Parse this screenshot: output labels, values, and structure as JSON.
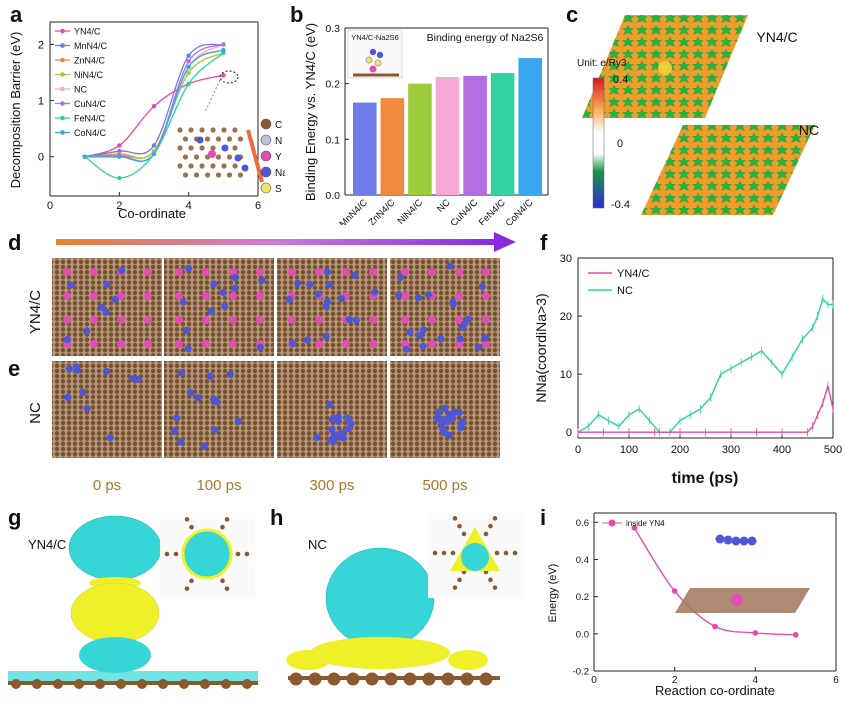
{
  "figure": {
    "panel_letters": [
      "a",
      "b",
      "c",
      "d",
      "e",
      "f",
      "g",
      "h",
      "i"
    ]
  },
  "panel_a": {
    "ylabel": "Decomposition Barrier (eV)",
    "xlabel": "Co-ordinate",
    "xticks": [
      "0",
      "2",
      "4",
      "6"
    ],
    "yticks": [
      "0",
      "1",
      "2"
    ],
    "legend": [
      "YN4/C",
      "MnN4/C",
      "ZnN4/C",
      "NiN4/C",
      "NC",
      "CuN4/C",
      "FeN4/C",
      "CoN4/C"
    ],
    "atoms": [
      "C",
      "N",
      "Y",
      "Na",
      "S"
    ],
    "atom_colors": [
      "#8a5a2e",
      "#b9c3d8",
      "#e24db5",
      "#4f57d6",
      "#f2e36b"
    ]
  },
  "panel_b": {
    "ylabel": "Binding Energy vs. YN4/C (eV)",
    "title": "Binding energy of Na2S6",
    "inset_label": "YN4/C-Na2S6",
    "yticks": [
      "0.0",
      "0.1",
      "0.2",
      "0.3"
    ]
  },
  "panel_c": {
    "label_top": "YN4/C",
    "label_bottom": "NC",
    "unit": "Unit: e/Ry3",
    "cbar_ticks": [
      "0.4",
      "0",
      "-0.4"
    ]
  },
  "panel_d": {
    "row_label": "YN4/C"
  },
  "panel_e": {
    "row_label": "NC",
    "times": [
      "0 ps",
      "100 ps",
      "300 ps",
      "500 ps"
    ]
  },
  "panel_f": {
    "ylabel": "NNa(coordiNa>3)",
    "xlabel": "time (ps)",
    "xticks": [
      "0",
      "100",
      "200",
      "300",
      "400",
      "500"
    ],
    "yticks": [
      "0",
      "10",
      "20",
      "30"
    ],
    "legend": [
      "YN4/C",
      "NC"
    ]
  },
  "panel_g": {
    "label": "YN4/C"
  },
  "panel_h": {
    "label": "NC"
  },
  "panel_i": {
    "ylabel": "Energy (eV)",
    "xlabel": "Reaction co-ordinate",
    "legend": "inside YN4",
    "xticks": [
      "0",
      "2",
      "4",
      "6"
    ],
    "yticks": [
      "-0.2",
      "0.0",
      "0.2",
      "0.4",
      "0.6"
    ]
  },
  "colors": {
    "YN4": "#e64aa5",
    "MnN4": "#6e7be8",
    "ZnN4": "#f08a3c",
    "NiN4": "#9ccc3c",
    "NC": "#f4a9d6",
    "CuN4": "#b36fe0",
    "FeN4": "#2fd3a0",
    "CoN4": "#3aa6ef",
    "iso_cyan": "#36d6d6",
    "iso_yellow": "#f0f02a"
  },
  "chart_data": [
    {
      "panel": "a",
      "type": "line",
      "title": "",
      "xlabel": "Co-ordinate",
      "ylabel": "Decomposition Barrier (eV)",
      "xlim": [
        0,
        6
      ],
      "ylim": [
        -0.7,
        2.4
      ],
      "x": [
        1,
        2,
        3,
        4,
        5
      ],
      "series": [
        {
          "name": "YN4/C",
          "values": [
            0,
            0.2,
            0.9,
            1.3,
            1.45
          ]
        },
        {
          "name": "MnN4/C",
          "values": [
            0,
            0.1,
            0.2,
            1.8,
            2.0
          ]
        },
        {
          "name": "ZnN4/C",
          "values": [
            0,
            0.05,
            0.1,
            1.6,
            1.9
          ]
        },
        {
          "name": "NiN4/C",
          "values": [
            0,
            0.02,
            0.1,
            1.5,
            1.85
          ]
        },
        {
          "name": "NC",
          "values": [
            0,
            0.0,
            0.05,
            1.6,
            2.0
          ]
        },
        {
          "name": "CuN4/C",
          "values": [
            0,
            0.02,
            0.05,
            1.7,
            2.0
          ]
        },
        {
          "name": "FeN4/C",
          "values": [
            0,
            -0.38,
            0.05,
            1.3,
            1.85
          ]
        },
        {
          "name": "CoN4/C",
          "values": [
            0,
            0.0,
            0.05,
            1.6,
            1.9
          ]
        }
      ]
    },
    {
      "panel": "b",
      "type": "bar",
      "title": "Binding energy of Na2S6",
      "xlabel": "",
      "ylabel": "Binding Energy vs. YN4/C (eV)",
      "ylim": [
        0,
        0.3
      ],
      "categories": [
        "MnN4/C",
        "ZnN4/C",
        "NiN4/C",
        "NC",
        "CuN4/C",
        "FeN4/C",
        "CoN4/C"
      ],
      "values": [
        0.166,
        0.174,
        0.2,
        0.212,
        0.214,
        0.219,
        0.246
      ]
    },
    {
      "panel": "f",
      "type": "line",
      "title": "",
      "xlabel": "time (ps)",
      "ylabel": "NNa(coordiNa>3)",
      "xlim": [
        0,
        500
      ],
      "ylim": [
        -1,
        30
      ],
      "series": [
        {
          "name": "YN4/C",
          "x": [
            0,
            50,
            100,
            150,
            200,
            250,
            300,
            350,
            400,
            450,
            460,
            470,
            480,
            490,
            500
          ],
          "values": [
            0,
            0,
            0,
            0,
            0,
            0,
            0,
            0,
            0,
            0,
            1,
            3,
            5,
            8,
            4
          ]
        },
        {
          "name": "NC",
          "x": [
            0,
            20,
            40,
            60,
            80,
            100,
            120,
            140,
            160,
            180,
            200,
            220,
            240,
            260,
            280,
            300,
            320,
            340,
            360,
            380,
            400,
            420,
            440,
            460,
            470,
            480,
            490,
            500
          ],
          "values": [
            0,
            1,
            3,
            2,
            1,
            3,
            4,
            2,
            0,
            0,
            2,
            3,
            4,
            6,
            10,
            11,
            12,
            13,
            14,
            12,
            10,
            13,
            16,
            18,
            20,
            23,
            22,
            22
          ]
        }
      ]
    },
    {
      "panel": "i",
      "type": "line",
      "title": "",
      "xlabel": "Reaction co-ordinate",
      "ylabel": "Energy (eV)",
      "xlim": [
        0,
        6
      ],
      "ylim": [
        -0.2,
        0.65
      ],
      "x": [
        1,
        2,
        3,
        4,
        5
      ],
      "series": [
        {
          "name": "inside YN4",
          "values": [
            0.57,
            0.23,
            0.04,
            0.005,
            -0.005
          ]
        }
      ]
    }
  ]
}
